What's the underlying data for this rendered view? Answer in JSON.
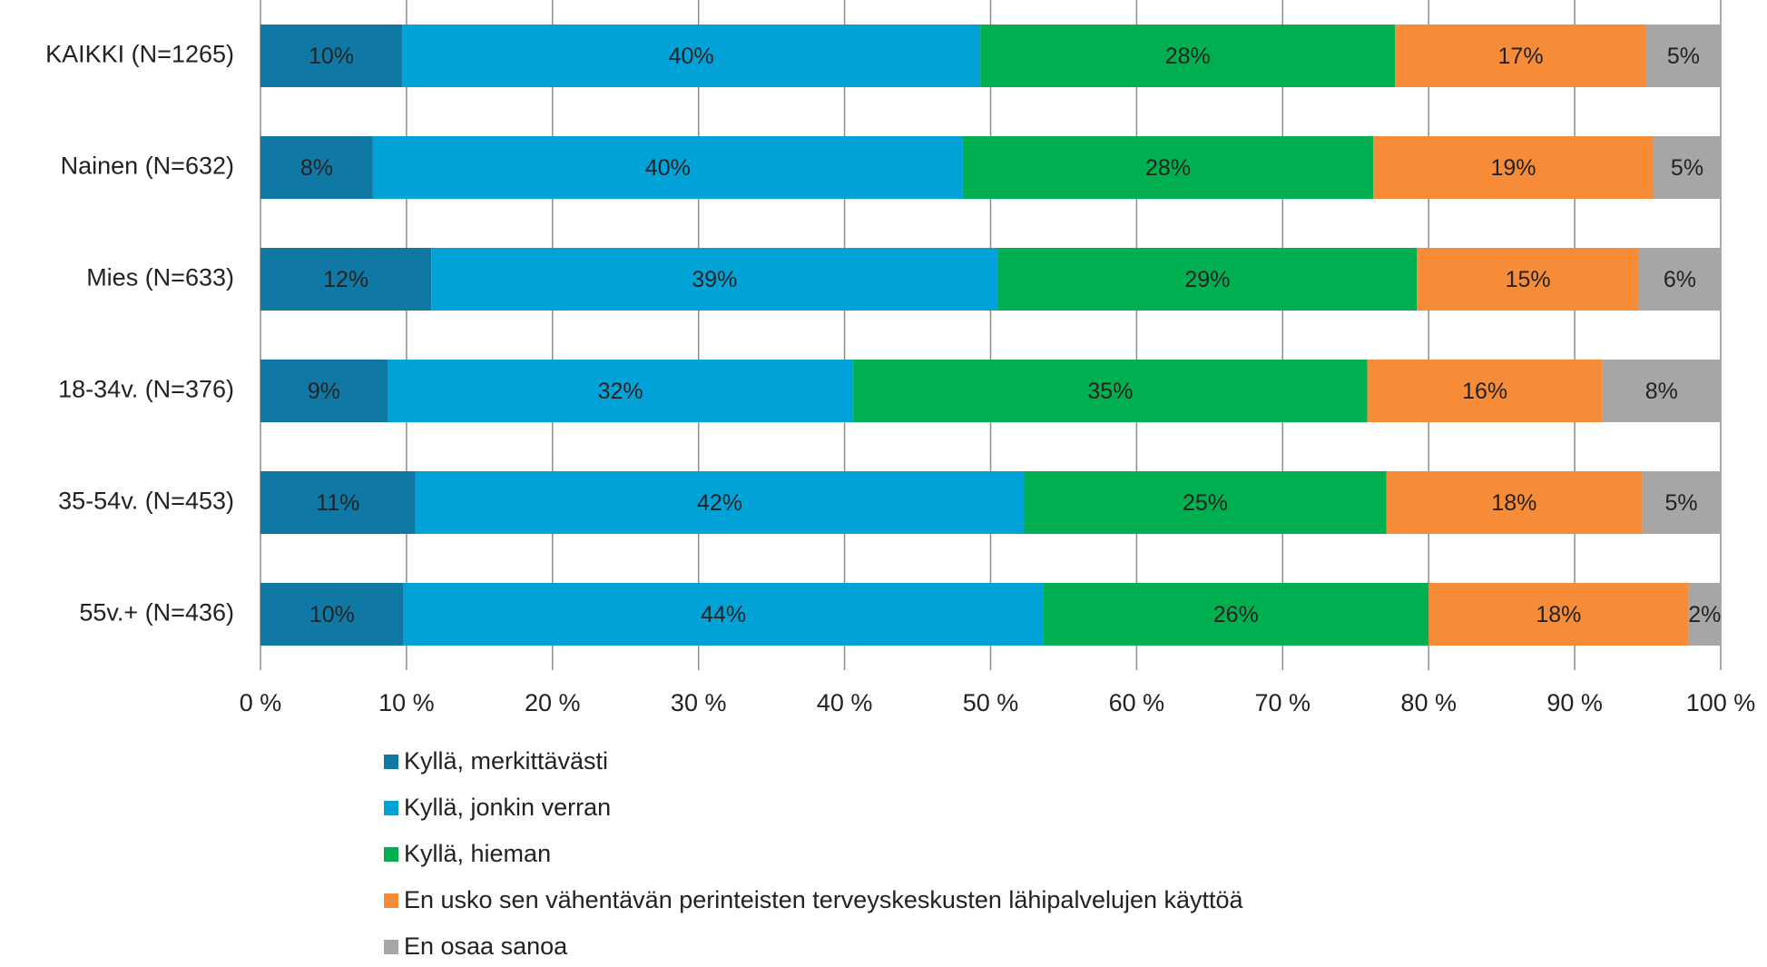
{
  "chart_data": {
    "type": "stacked-barh",
    "categories": [
      "KAIKKI (N=1265)",
      "Nainen (N=632)",
      "Mies (N=633)",
      "18-34v. (N=376)",
      "35-54v. (N=453)",
      "55v.+ (N=436)"
    ],
    "series": [
      {
        "name": "Kyllä, merkittävästi",
        "color": "#0f78a4",
        "values": [
          9.7,
          7.7,
          11.7,
          8.7,
          10.6,
          9.8
        ],
        "value_labels": [
          "10%",
          "8%",
          "12%",
          "9%",
          "11%",
          "10%"
        ]
      },
      {
        "name": "Kyllä, jonkin verran",
        "color": "#00a2d8",
        "values": [
          39.6,
          40.4,
          38.8,
          31.9,
          41.7,
          43.8
        ],
        "value_labels": [
          "40%",
          "40%",
          "39%",
          "32%",
          "42%",
          "44%"
        ]
      },
      {
        "name": "Kyllä, hieman",
        "color": "#00b050",
        "values": [
          28.4,
          28.1,
          28.7,
          35.2,
          24.8,
          26.4
        ],
        "value_labels": [
          "28%",
          "28%",
          "29%",
          "35%",
          "25%",
          "26%"
        ]
      },
      {
        "name": "En usko sen vähentävän perinteisten terveyskeskusten lähipalvelujen käyttöä",
        "color": "#f68b38",
        "values": [
          17.2,
          19.2,
          15.2,
          16.1,
          17.5,
          17.8
        ],
        "value_labels": [
          "17%",
          "19%",
          "15%",
          "16%",
          "18%",
          "18%"
        ]
      },
      {
        "name": "En osaa sanoa",
        "color": "#a6a6a6",
        "values": [
          5.1,
          4.6,
          5.6,
          8.1,
          5.4,
          2.2
        ],
        "value_labels": [
          "5%",
          "5%",
          "6%",
          "8%",
          "5%",
          "2%"
        ]
      }
    ],
    "xlim": [
      0,
      100
    ],
    "xticks": [
      {
        "value": 0,
        "label": "0 %"
      },
      {
        "value": 10,
        "label": "10 %"
      },
      {
        "value": 20,
        "label": "20 %"
      },
      {
        "value": 30,
        "label": "30 %"
      },
      {
        "value": 40,
        "label": "40 %"
      },
      {
        "value": 50,
        "label": "50 %"
      },
      {
        "value": 60,
        "label": "60 %"
      },
      {
        "value": 70,
        "label": "70 %"
      },
      {
        "value": 80,
        "label": "80 %"
      },
      {
        "value": 90,
        "label": "90 %"
      },
      {
        "value": 100,
        "label": "100 %"
      }
    ],
    "grid": true,
    "legend": "bottom"
  }
}
